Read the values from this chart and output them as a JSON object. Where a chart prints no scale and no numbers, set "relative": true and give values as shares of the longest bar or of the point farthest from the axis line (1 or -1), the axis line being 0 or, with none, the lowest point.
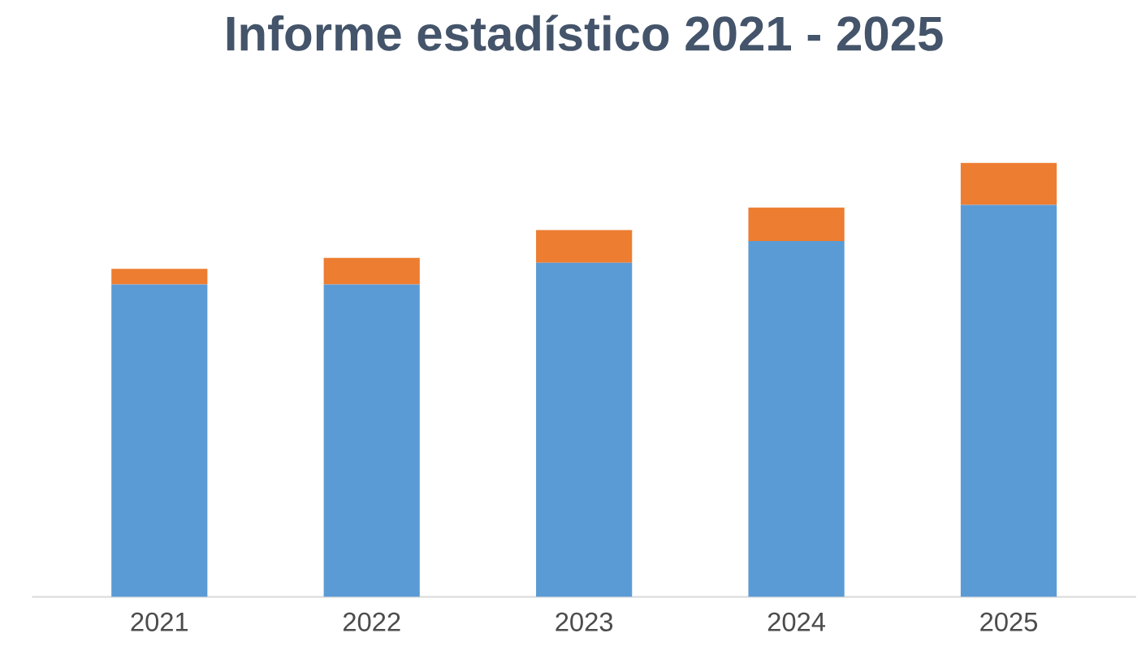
{
  "chart_data": {
    "type": "bar",
    "title": "Informe estadístico 2021 - 2025",
    "categories": [
      "2021",
      "2022",
      "2023",
      "2024",
      "2025"
    ],
    "stacked": true,
    "relative": true,
    "series": [
      {
        "color": "#5b9bd5",
        "values": [
          0.72,
          0.72,
          0.77,
          0.82,
          0.903
        ]
      },
      {
        "color": "#ed7d31",
        "values": [
          0.036,
          0.061,
          0.075,
          0.077,
          0.097
        ]
      }
    ]
  }
}
